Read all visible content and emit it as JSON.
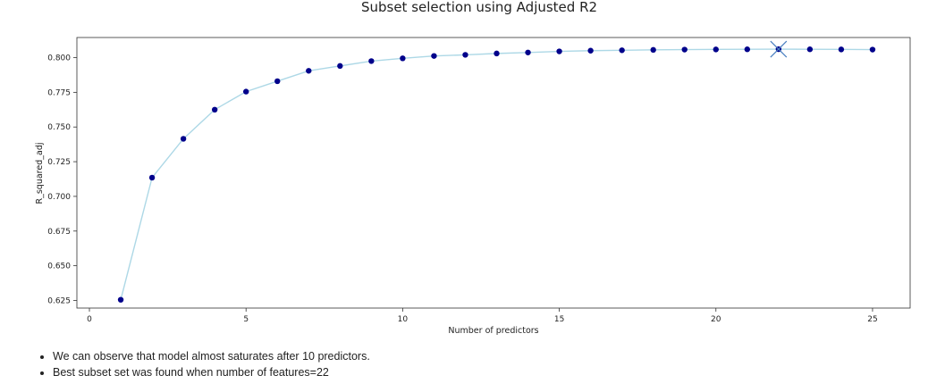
{
  "chart_data": {
    "type": "line",
    "title": "Subset selection using Adjusted R2",
    "xlabel": "Number of predictors",
    "ylabel": "R_squared_adj",
    "xlim": [
      -0.4,
      26.2
    ],
    "ylim": [
      0.6195,
      0.8145
    ],
    "x_ticks": [
      0,
      5,
      10,
      15,
      20,
      25
    ],
    "y_ticks": [
      0.625,
      0.65,
      0.675,
      0.7,
      0.725,
      0.75,
      0.775,
      0.8
    ],
    "y_tick_labels": [
      "0.625",
      "0.650",
      "0.675",
      "0.700",
      "0.725",
      "0.750",
      "0.775",
      "0.800"
    ],
    "grid": false,
    "line_color": "#add8e6",
    "marker_color": "#00008b",
    "best_marker_color": "#4a7fc1",
    "x": [
      1,
      2,
      3,
      4,
      5,
      6,
      7,
      8,
      9,
      10,
      11,
      12,
      13,
      14,
      15,
      16,
      17,
      18,
      19,
      20,
      21,
      22,
      23,
      24,
      25
    ],
    "values": [
      0.6255,
      0.7135,
      0.7415,
      0.7625,
      0.7755,
      0.783,
      0.7905,
      0.794,
      0.7975,
      0.7995,
      0.8012,
      0.802,
      0.803,
      0.8037,
      0.8045,
      0.805,
      0.8053,
      0.8056,
      0.8058,
      0.8059,
      0.806,
      0.8061,
      0.806,
      0.8059,
      0.8058
    ],
    "best": {
      "x": 22,
      "y": 0.8061
    }
  },
  "notes": [
    "We can observe that model almost saturates after 10 predictors.",
    "Best subset set was found when number of features=22"
  ]
}
